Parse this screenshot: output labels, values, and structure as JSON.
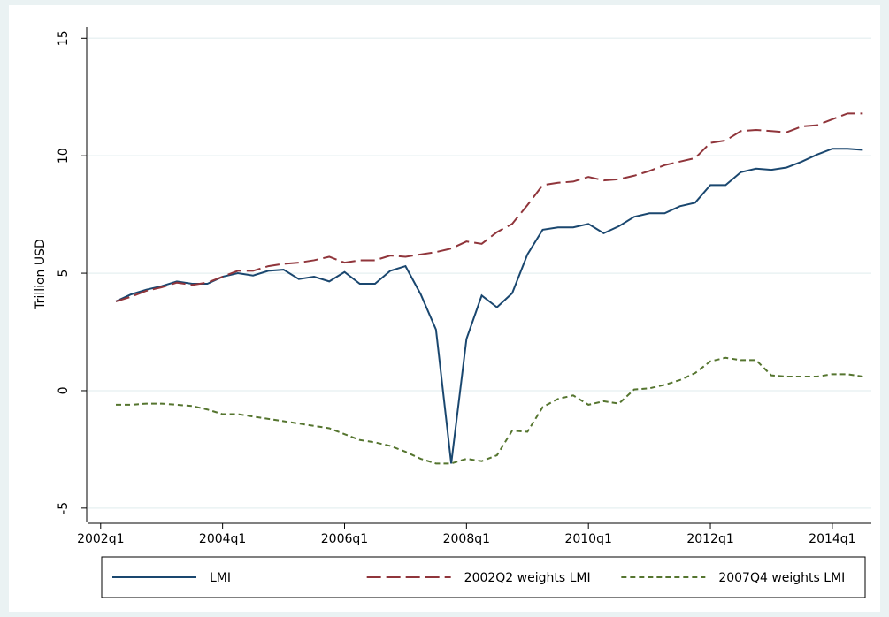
{
  "chart_data": {
    "type": "line",
    "ylabel": "Trillion USD",
    "x": [
      2002.25,
      2002.5,
      2002.75,
      2003,
      2003.25,
      2003.5,
      2003.75,
      2004,
      2004.25,
      2004.5,
      2004.75,
      2005,
      2005.25,
      2005.5,
      2005.75,
      2006,
      2006.25,
      2006.5,
      2006.75,
      2007,
      2007.25,
      2007.5,
      2007.75,
      2008,
      2008.25,
      2008.5,
      2008.75,
      2009,
      2009.25,
      2009.5,
      2009.75,
      2010,
      2010.25,
      2010.5,
      2010.75,
      2011,
      2011.25,
      2011.5,
      2011.75,
      2012,
      2012.25,
      2012.5,
      2012.75,
      2013,
      2013.25,
      2013.5,
      2013.75,
      2014,
      2014.25,
      2014.5
    ],
    "series": [
      {
        "name": "LMI",
        "color": "#1a476f",
        "dash": "solid",
        "values": [
          3.8,
          4.1,
          4.3,
          4.45,
          4.65,
          4.55,
          4.55,
          4.85,
          5.0,
          4.9,
          5.1,
          5.15,
          4.75,
          4.85,
          4.65,
          5.05,
          4.55,
          4.55,
          5.1,
          5.3,
          4.1,
          2.6,
          -3.1,
          2.2,
          4.05,
          3.55,
          4.15,
          5.8,
          6.85,
          6.95,
          6.95,
          7.1,
          6.7,
          7.0,
          7.4,
          7.55,
          7.55,
          7.85,
          8.0,
          8.75,
          8.75,
          9.3,
          9.45,
          9.4,
          9.5,
          9.75,
          10.05,
          10.3,
          10.3,
          10.25
        ]
      },
      {
        "name": "2002Q2 weights LMI",
        "color": "#90353b",
        "dash": "long",
        "values": [
          3.8,
          4.0,
          4.25,
          4.4,
          4.6,
          4.5,
          4.6,
          4.85,
          5.1,
          5.1,
          5.3,
          5.4,
          5.45,
          5.55,
          5.7,
          5.45,
          5.55,
          5.55,
          5.75,
          5.7,
          5.8,
          5.9,
          6.05,
          6.35,
          6.25,
          6.75,
          7.1,
          7.9,
          8.75,
          8.85,
          8.9,
          9.1,
          8.95,
          9.0,
          9.15,
          9.35,
          9.6,
          9.75,
          9.9,
          10.55,
          10.65,
          11.05,
          11.1,
          11.05,
          11.0,
          11.25,
          11.3,
          11.55,
          11.8,
          11.8
        ]
      },
      {
        "name": "2007Q4 weights LMI",
        "color": "#55752f",
        "dash": "short",
        "values": [
          -0.6,
          -0.6,
          -0.55,
          -0.55,
          -0.6,
          -0.65,
          -0.8,
          -1.0,
          -1.0,
          -1.1,
          -1.2,
          -1.3,
          -1.4,
          -1.5,
          -1.6,
          -1.85,
          -2.1,
          -2.2,
          -2.35,
          -2.6,
          -2.9,
          -3.1,
          -3.1,
          -2.9,
          -3.0,
          -2.75,
          -1.7,
          -1.75,
          -0.7,
          -0.35,
          -0.2,
          -0.6,
          -0.45,
          -0.55,
          0.05,
          0.1,
          0.25,
          0.45,
          0.75,
          1.25,
          1.4,
          1.3,
          1.3,
          0.65,
          0.6,
          0.6,
          0.6,
          0.7,
          0.7,
          0.6
        ]
      }
    ],
    "xlim": [
      2001.8,
      2014.64
    ],
    "xticks": [
      {
        "value": 2002,
        "label": "2002q1"
      },
      {
        "value": 2004,
        "label": "2004q1"
      },
      {
        "value": 2006,
        "label": "2006q1"
      },
      {
        "value": 2008,
        "label": "2008q1"
      },
      {
        "value": 2010,
        "label": "2010q1"
      },
      {
        "value": 2012,
        "label": "2012q1"
      },
      {
        "value": 2014,
        "label": "2014q1"
      }
    ],
    "ylim": [
      -5.57,
      15.5
    ],
    "yticks": [
      -5,
      0,
      5,
      10,
      15
    ],
    "grid": true,
    "legend": "bottom"
  }
}
